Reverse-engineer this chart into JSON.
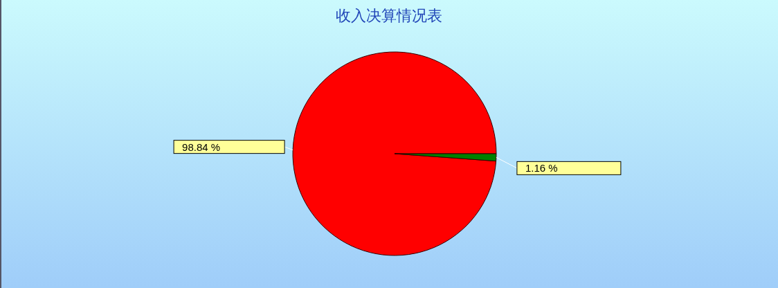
{
  "chart_data": {
    "type": "pie",
    "title": "收入决算情况表",
    "categories": [
      null,
      null
    ],
    "values": [
      98.84,
      1.16
    ],
    "colors": [
      "#ff0000",
      "#008000"
    ],
    "value_labels": [
      "98.84 %",
      "1.16 %"
    ]
  }
}
